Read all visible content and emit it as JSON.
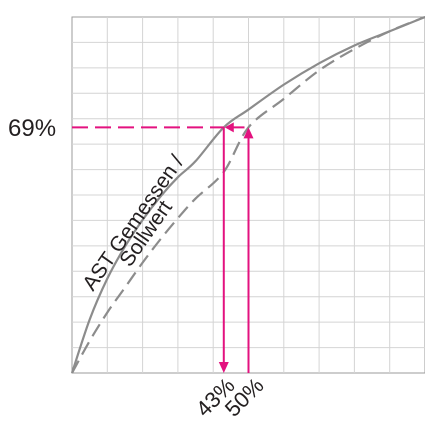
{
  "chart_data": {
    "type": "line",
    "title": "",
    "xlabel": "",
    "ylabel": "",
    "xlim": [
      0,
      100
    ],
    "ylim": [
      0,
      100
    ],
    "grid": true,
    "series": [
      {
        "name": "AST Gemessen /",
        "style": "solid",
        "color": "#8c8c8c",
        "x": [
          0,
          5,
          10,
          15,
          20,
          25,
          30,
          35,
          43,
          50,
          60,
          70,
          80,
          90,
          100
        ],
        "y": [
          0,
          15,
          26.5,
          35.5,
          43,
          49.5,
          55,
          59.5,
          69,
          74,
          81,
          87,
          92,
          96,
          100
        ]
      },
      {
        "name": "Sollwert",
        "style": "dashed",
        "color": "#8c8c8c",
        "x": [
          0,
          5,
          10,
          15,
          20,
          25,
          30,
          35,
          43,
          50,
          60,
          70,
          80,
          90,
          100
        ],
        "y": [
          0,
          9,
          17,
          24,
          31,
          37.5,
          43.5,
          49,
          56.5,
          69,
          77,
          85,
          91,
          96,
          100
        ]
      }
    ],
    "annotations": {
      "level_label": "69%",
      "level_value": 69,
      "x_markers": [
        {
          "label": "43%",
          "value": 43,
          "direction": "down"
        },
        {
          "label": "50%",
          "value": 50,
          "direction": "up"
        }
      ],
      "accent_color": "#e3127f"
    }
  }
}
